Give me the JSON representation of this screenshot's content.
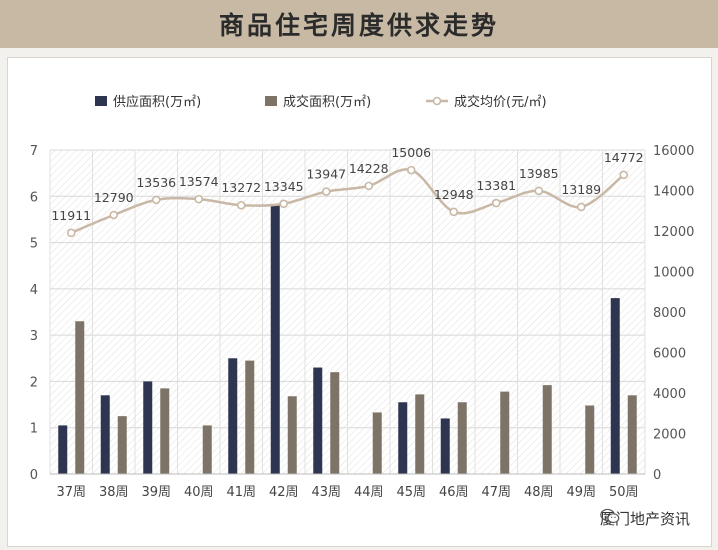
{
  "title": "商品住宅周度供求走势",
  "brand": "厦门地产资讯",
  "colors": {
    "banner": "#c8b9a4",
    "supply": "#2e3550",
    "deal": "#7d7467",
    "price": "#c9b8a6"
  },
  "chart_data": {
    "type": "bar+line",
    "categories": [
      "37周",
      "38周",
      "39周",
      "40周",
      "41周",
      "42周",
      "43周",
      "44周",
      "45周",
      "46周",
      "47周",
      "48周",
      "49周",
      "50周"
    ],
    "series": [
      {
        "name": "供应面积(万㎡)",
        "type": "bar",
        "axis": "left",
        "values": [
          1.05,
          1.7,
          2.0,
          null,
          2.5,
          5.8,
          2.3,
          null,
          1.55,
          1.2,
          null,
          null,
          null,
          3.8
        ]
      },
      {
        "name": "成交面积(万㎡)",
        "type": "bar",
        "axis": "left",
        "values": [
          3.3,
          1.25,
          1.85,
          1.05,
          2.45,
          1.68,
          2.2,
          1.33,
          1.72,
          1.55,
          1.78,
          1.92,
          1.48,
          1.7
        ]
      },
      {
        "name": "成交均价(元/㎡)",
        "type": "line",
        "axis": "right",
        "values": [
          11911,
          12790,
          13536,
          13574,
          13272,
          13345,
          13947,
          14228,
          15006,
          12948,
          13381,
          13985,
          13189,
          14772
        ]
      }
    ],
    "y_left": {
      "min": 0,
      "max": 7,
      "ticks": [
        "0",
        "1",
        "2",
        "3",
        "4",
        "5",
        "6",
        "7"
      ]
    },
    "y_right": {
      "min": 0,
      "max": 16000,
      "ticks": [
        "0",
        "2000",
        "4000",
        "6000",
        "8000",
        "10000",
        "12000",
        "14000",
        "16000"
      ]
    },
    "data_labels": [
      "11911",
      "12790",
      "13536",
      "13574",
      "13272",
      "13345",
      "13947",
      "14228",
      "15006",
      "12948",
      "13381",
      "13985",
      "13189",
      "14772"
    ],
    "legend_position": "top",
    "grid": true
  }
}
